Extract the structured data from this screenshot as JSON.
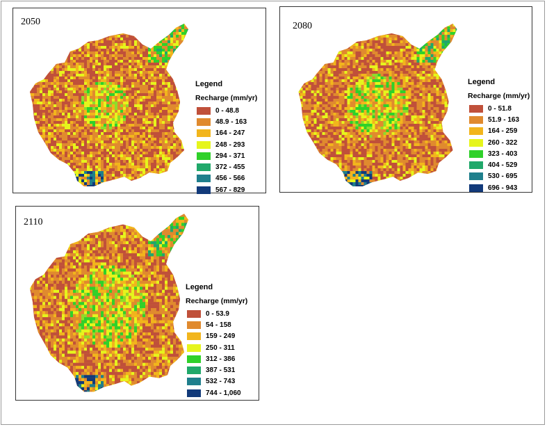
{
  "panels": [
    {
      "year": "2050",
      "legend_title": "Legend",
      "legend_subtitle": "Recharge (mm/yr)",
      "classes": [
        {
          "label": "0 - 48.8",
          "color": "#c0503a"
        },
        {
          "label": "48.9 - 163",
          "color": "#e08a2e"
        },
        {
          "label": "164 - 247",
          "color": "#f2b51c"
        },
        {
          "label": "248 - 293",
          "color": "#e6f51c"
        },
        {
          "label": "294 - 371",
          "color": "#2fd12a"
        },
        {
          "label": "372 - 455",
          "color": "#20a86a"
        },
        {
          "label": "456 - 566",
          "color": "#1f7f8c"
        },
        {
          "label": "567 - 829",
          "color": "#123a7a"
        }
      ]
    },
    {
      "year": "2080",
      "legend_title": "Legend",
      "legend_subtitle": "Recharge (mm/yr)",
      "classes": [
        {
          "label": "0 - 51.8",
          "color": "#c0503a"
        },
        {
          "label": "51.9 - 163",
          "color": "#e08a2e"
        },
        {
          "label": "164 - 259",
          "color": "#f2b51c"
        },
        {
          "label": "260 - 322",
          "color": "#e6f51c"
        },
        {
          "label": "323 - 403",
          "color": "#2fd12a"
        },
        {
          "label": "404 - 529",
          "color": "#20a86a"
        },
        {
          "label": "530 - 695",
          "color": "#1f7f8c"
        },
        {
          "label": "696 - 943",
          "color": "#123a7a"
        }
      ]
    },
    {
      "year": "2110",
      "legend_title": "Legend",
      "legend_subtitle": "Recharge (mm/yr)",
      "classes": [
        {
          "label": "0 - 53.9",
          "color": "#c0503a"
        },
        {
          "label": "54 - 158",
          "color": "#e08a2e"
        },
        {
          "label": "159 - 249",
          "color": "#f2b51c"
        },
        {
          "label": "250 - 311",
          "color": "#e6f51c"
        },
        {
          "label": "312 - 386",
          "color": "#2fd12a"
        },
        {
          "label": "387 - 531",
          "color": "#20a86a"
        },
        {
          "label": "532 - 743",
          "color": "#1f7f8c"
        },
        {
          "label": "744 - 1,060",
          "color": "#123a7a"
        }
      ]
    }
  ]
}
